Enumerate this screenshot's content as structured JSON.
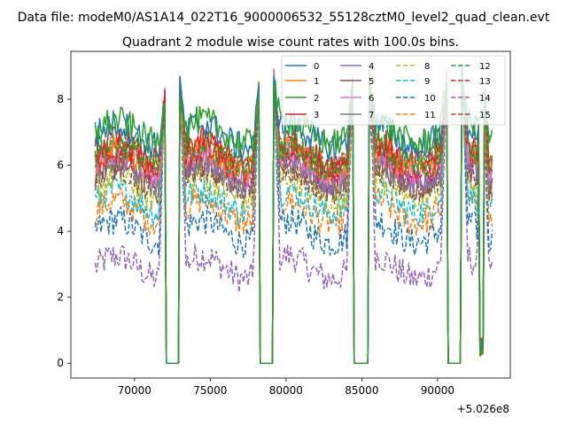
{
  "chart_data": {
    "type": "line",
    "suptitle": "Data file: modeM0/AS1A14_022T16_9000006532_55128cztM0_level2_quad_clean.evt",
    "title": "Quadrant 2 module wise count rates with 100.0s bins.",
    "xlabel": "",
    "ylabel": "",
    "x_offset_label": "+5.026e8",
    "xlim": [
      65800,
      94800
    ],
    "ylim": [
      -0.45,
      9.45
    ],
    "x_ticks": [
      70000,
      75000,
      80000,
      85000,
      90000
    ],
    "x_tick_labels": [
      "70000",
      "75000",
      "80000",
      "85000",
      "90000"
    ],
    "y_ticks": [
      0,
      2,
      4,
      6,
      8
    ],
    "y_tick_labels": [
      "0",
      "2",
      "4",
      "6",
      "8"
    ],
    "legend_position": "top-right",
    "legend_columns": 4,
    "time_range": [
      67400,
      93600
    ],
    "bin_size_s": 100,
    "gaps": [
      [
        72000,
        73000
      ],
      [
        78200,
        79200
      ],
      [
        84400,
        85500
      ],
      [
        90600,
        91600
      ]
    ],
    "spike_times": [
      72000,
      73000,
      78200,
      79200,
      84400,
      85500,
      90600,
      91600,
      93000
    ],
    "series": [
      {
        "name": "0",
        "color": "#1f77b4",
        "style": "solid",
        "mean": 6.9
      },
      {
        "name": "1",
        "color": "#ff7f0e",
        "style": "solid",
        "mean": 6.2
      },
      {
        "name": "2",
        "color": "#2ca02c",
        "style": "solid",
        "mean": 7.0
      },
      {
        "name": "3",
        "color": "#d62728",
        "style": "solid",
        "mean": 6.4
      },
      {
        "name": "4",
        "color": "#9467bd",
        "style": "solid",
        "mean": 5.9
      },
      {
        "name": "5",
        "color": "#8c564b",
        "style": "solid",
        "mean": 5.7
      },
      {
        "name": "6",
        "color": "#e377c2",
        "style": "solid",
        "mean": 6.1
      },
      {
        "name": "7",
        "color": "#7f7f7f",
        "style": "solid",
        "mean": 5.8
      },
      {
        "name": "8",
        "color": "#bcbd22",
        "style": "dashed",
        "mean": 5.3
      },
      {
        "name": "9",
        "color": "#17becf",
        "style": "dashed",
        "mean": 4.9
      },
      {
        "name": "10",
        "color": "#1f77b4",
        "style": "dashed",
        "mean": 4.0
      },
      {
        "name": "11",
        "color": "#ff7f0e",
        "style": "dashed",
        "mean": 4.6
      },
      {
        "name": "12",
        "color": "#2ca02c",
        "style": "dashed",
        "mean": 6.3
      },
      {
        "name": "13",
        "color": "#d62728",
        "style": "dashed",
        "mean": 6.1
      },
      {
        "name": "14",
        "color": "#9467bd",
        "style": "dashed",
        "mean": 2.9
      },
      {
        "name": "15",
        "color": "#8c564b",
        "style": "dashed",
        "mean": 5.6
      }
    ]
  }
}
